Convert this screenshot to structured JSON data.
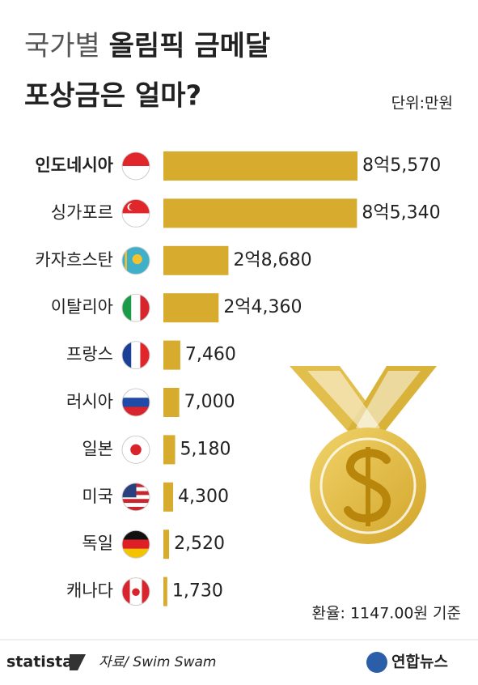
{
  "chart_data": {
    "type": "bar",
    "orientation": "horizontal",
    "title": [
      "국가별 올림픽 금메달",
      "포상금은 얼마?"
    ],
    "unit_label": "단위:만원",
    "categories": [
      "인도네시아",
      "싱가포르",
      "카자흐스탄",
      "이탈리아",
      "프랑스",
      "러시아",
      "일본",
      "미국",
      "독일",
      "캐나다"
    ],
    "values": [
      85570,
      85340,
      28680,
      24360,
      7460,
      7000,
      5180,
      4300,
      2520,
      1730
    ],
    "value_labels": [
      "8억5,570",
      "8억5,340",
      "2억8,680",
      "2억4,360",
      "7,460",
      "7,000",
      "5,180",
      "4,300",
      "2,520",
      "1,730"
    ],
    "color": "#d6ab2e",
    "note": "환율: 1147.00원 기준",
    "source": "자료/ Swim Swam",
    "brand_left": "statista",
    "brand_right": "연합뉴스"
  }
}
